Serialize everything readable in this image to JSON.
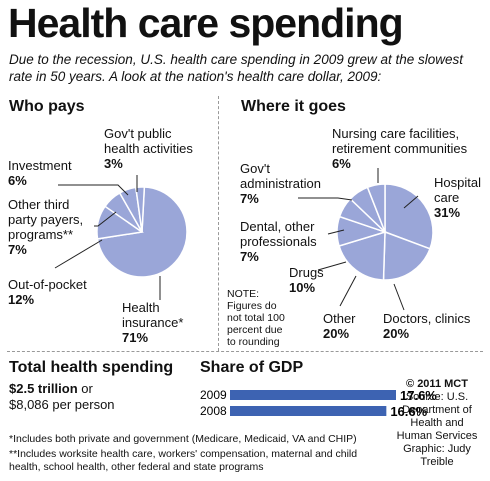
{
  "header": {
    "title": "Health care spending",
    "subtitle": "Due to the recession, U.S. health care spending in 2009 grew at the slowest rate in 50 years. A look at the nation's health care dollar, 2009:"
  },
  "colors": {
    "pie_fill": "#9aa6d8",
    "bar_fill": "#3d63b2",
    "slice_stroke": "#ffffff",
    "leader": "#222222"
  },
  "chart_data": [
    {
      "type": "pie",
      "title": "Who pays",
      "slices": [
        {
          "label": "Health insurance*",
          "value": 71
        },
        {
          "label": "Out-of-pocket",
          "value": 12
        },
        {
          "label": "Other third party payers, programs**",
          "value": 7
        },
        {
          "label": "Investment",
          "value": 6
        },
        {
          "label": "Gov't public health activities",
          "value": 3
        }
      ]
    },
    {
      "type": "pie",
      "title": "Where it goes",
      "slices": [
        {
          "label": "Hospital care",
          "value": 31
        },
        {
          "label": "Doctors, clinics",
          "value": 20
        },
        {
          "label": "Other",
          "value": 20
        },
        {
          "label": "Drugs",
          "value": 10
        },
        {
          "label": "Dental, other professionals",
          "value": 7
        },
        {
          "label": "Gov't administration",
          "value": 7
        },
        {
          "label": "Nursing care facilities, retirement communities",
          "value": 6
        }
      ]
    },
    {
      "type": "bar",
      "title": "Share of GDP",
      "categories": [
        "2009",
        "2008"
      ],
      "values": [
        17.6,
        16.6
      ],
      "value_labels": [
        "17.6%",
        "16.6%"
      ]
    }
  ],
  "labels": {
    "who_pays": {
      "gov": {
        "l1": "Gov't public",
        "l2": "health activities",
        "pct": "3%"
      },
      "investment": {
        "l1": "Investment",
        "pct": "6%"
      },
      "other_third": {
        "l1": "Other third",
        "l2": "party payers,",
        "l3": "programs**",
        "pct": "7%"
      },
      "oop": {
        "l1": "Out-of-pocket",
        "pct": "12%"
      },
      "insurance": {
        "l1": "Health",
        "l2": "insurance*",
        "pct": "71%"
      }
    },
    "where_goes": {
      "nursing": {
        "l1": "Nursing care facilities,",
        "l2": "retirement  communities",
        "pct": "6%"
      },
      "admin": {
        "l1": "Gov't",
        "l2": "administration",
        "pct": "7%"
      },
      "hospital": {
        "l1": "Hospital",
        "l2": "care",
        "pct": "31%"
      },
      "dental": {
        "l1": "Dental, other",
        "l2": "professionals",
        "pct": "7%"
      },
      "drugs": {
        "l1": "Drugs",
        "pct": "10%"
      },
      "other": {
        "l1": "Other",
        "pct": "20%"
      },
      "doctors": {
        "l1": "Doctors, clinics",
        "pct": "20%"
      }
    },
    "note": {
      "l1": "NOTE:",
      "l2": "Figures do",
      "l3": "not total 100",
      "l4": "percent due",
      "l5": "to rounding"
    }
  },
  "total": {
    "heading": "Total health spending",
    "amount": "$2.5 trillion",
    "amount_suffix": " or",
    "per_person": "$8,086 per person"
  },
  "credits": {
    "copyright": "© 2011 MCT",
    "source_l1": "Source: U.S.",
    "source_l2": "Department of",
    "source_l3": "Health and",
    "source_l4": "Human Services",
    "graphic_l1": "Graphic: Judy",
    "graphic_l2": "Treible"
  },
  "footnotes": {
    "f1": "*Includes both private and government (Medicare, Medicaid, VA and CHIP)",
    "f2": "**Includes worksite health care, workers' compensation, maternal and child health, school health, other federal and state programs"
  }
}
